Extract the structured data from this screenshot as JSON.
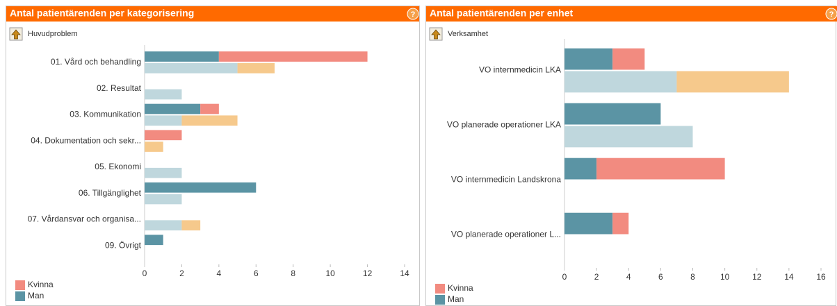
{
  "chart_data": [
    {
      "type": "bar",
      "orientation": "horizontal",
      "stacked": true,
      "title": "Antal patientärenden per kategorisering",
      "subtitle": "Huvudproblem",
      "categories": [
        "01. Vård och behandling",
        "02. Resultat",
        "03. Kommunikation",
        "04. Dokumentation och sekr...",
        "05. Ekonomi",
        "06. Tillgänglighet",
        "07. Vårdansvar och organisa...",
        "09. Övrigt"
      ],
      "series": [
        {
          "name": "Man",
          "color": "#5b94a4",
          "stack": 0,
          "values": [
            4,
            0,
            3,
            0,
            0,
            6,
            0,
            1
          ]
        },
        {
          "name": "Kvinna",
          "color": "#f28b80",
          "stack": 0,
          "values": [
            8,
            0,
            1,
            2,
            0,
            0,
            0,
            0
          ]
        },
        {
          "color": "#bfd7dd",
          "stack": 1,
          "values": [
            5,
            2,
            2,
            0,
            2,
            2,
            2,
            0
          ]
        },
        {
          "color": "#f6c98c",
          "stack": 1,
          "values": [
            2,
            0,
            3,
            1,
            0,
            0,
            1,
            0
          ]
        }
      ],
      "xlim": [
        0,
        14
      ],
      "xticks": [
        0,
        2,
        4,
        6,
        8,
        10,
        12,
        14
      ],
      "legend": "bottom-left"
    },
    {
      "type": "bar",
      "orientation": "horizontal",
      "stacked": true,
      "title": "Antal patientärenden per enhet",
      "subtitle": "Verksamhet",
      "categories": [
        "VO internmedicin LKA",
        "VO planerade operationer LKA",
        "VO internmedicin Landskrona",
        "VO planerade operationer L..."
      ],
      "series": [
        {
          "name": "Man",
          "color": "#5b94a4",
          "stack": 0,
          "values": [
            3,
            6,
            2,
            3
          ]
        },
        {
          "name": "Kvinna",
          "color": "#f28b80",
          "stack": 0,
          "values": [
            2,
            0,
            8,
            1
          ]
        },
        {
          "color": "#bfd7dd",
          "stack": 1,
          "values": [
            7,
            8,
            0,
            0
          ]
        },
        {
          "color": "#f6c98c",
          "stack": 1,
          "values": [
            7,
            0,
            0,
            0
          ]
        }
      ],
      "xlim": [
        0,
        16
      ],
      "xticks": [
        0,
        2,
        4,
        6,
        8,
        10,
        12,
        14,
        16
      ],
      "legend": "bottom-left"
    }
  ]
}
